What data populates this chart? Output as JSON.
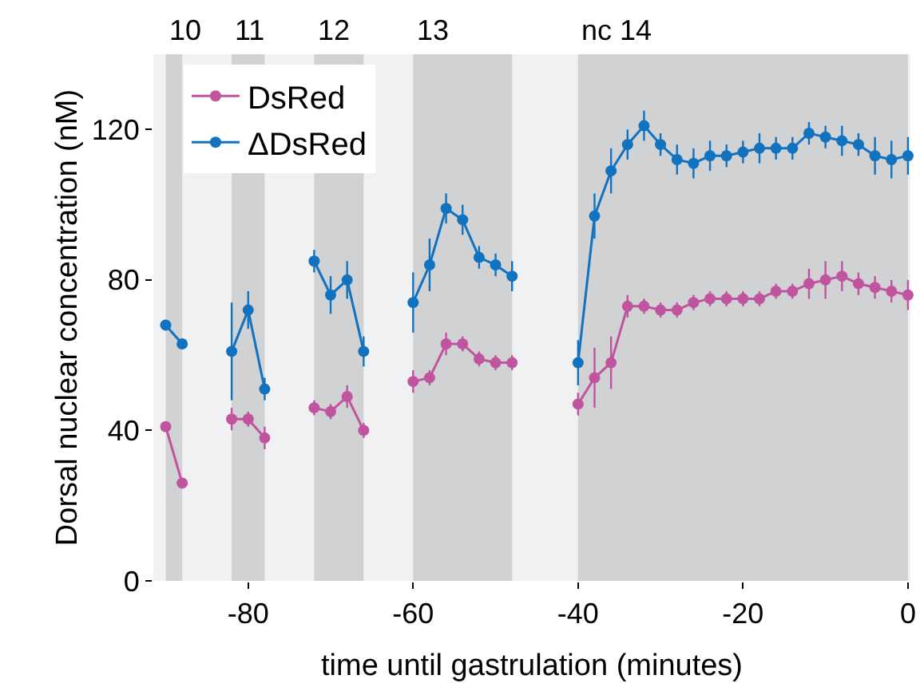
{
  "chart_data": {
    "type": "line",
    "xlabel": "time until gastrulation (minutes)",
    "ylabel": "Dorsal nuclear concentration (nM)",
    "xlim": [
      -91.5,
      0.3
    ],
    "xticks": [
      -80,
      -60,
      -40,
      -20,
      0
    ],
    "ylim": [
      0,
      140
    ],
    "yticks": [
      0,
      40,
      80,
      120
    ],
    "grid": false,
    "legend": "top left",
    "marker": "circle",
    "line_style": "solid",
    "bands": [
      {
        "axis": "x",
        "from": -90,
        "to": -88,
        "label": "10",
        "color": "#d1d2d4"
      },
      {
        "axis": "x",
        "from": -82,
        "to": -78,
        "label": "11",
        "color": "#d1d2d4"
      },
      {
        "axis": "x",
        "from": -72,
        "to": -66,
        "label": "12",
        "color": "#d1d2d4"
      },
      {
        "axis": "x",
        "from": -60,
        "to": -48,
        "label": "13",
        "color": "#d1d2d4"
      },
      {
        "axis": "x",
        "from": -40,
        "to": 0,
        "label": "nc 14",
        "color": "#d1d2d4"
      }
    ],
    "series": [
      {
        "name": "DsRed",
        "color": "#c0549f",
        "x": [
          -90,
          -88,
          -85,
          -82,
          -80,
          -78,
          -75,
          -72,
          -70,
          -68,
          -66,
          -63,
          -60,
          -58,
          -56,
          -54,
          -52,
          -50,
          -48,
          -44,
          -40,
          -38,
          -36,
          -34,
          -32,
          -30,
          -28,
          -26,
          -24,
          -22,
          -20,
          -18,
          -16,
          -14,
          -12,
          -10,
          -8,
          -6,
          -4,
          -2,
          0
        ],
        "values": [
          41,
          26,
          null,
          43,
          43,
          38,
          null,
          46,
          45,
          49,
          40,
          null,
          53,
          54,
          63,
          63,
          59,
          58,
          58,
          null,
          47,
          54,
          58,
          73,
          73,
          72,
          72,
          74,
          75,
          75,
          75,
          75,
          77,
          77,
          79,
          80,
          81,
          79,
          78,
          77,
          76
        ],
        "errors": [
          1,
          1,
          null,
          3,
          2,
          3,
          null,
          2,
          2,
          3,
          2,
          null,
          3,
          2,
          3,
          2,
          2,
          2,
          2,
          null,
          3,
          8,
          7,
          3,
          2,
          2,
          2,
          2,
          2,
          2,
          2,
          2,
          2,
          2,
          4,
          5,
          4,
          3,
          3,
          3,
          4
        ]
      },
      {
        "name": "ΔDsRed",
        "color": "#1172c0",
        "x": [
          -90,
          -88,
          -85,
          -82,
          -80,
          -78,
          -75,
          -72,
          -70,
          -68,
          -66,
          -63,
          -60,
          -58,
          -56,
          -54,
          -52,
          -50,
          -48,
          -44,
          -40,
          -38,
          -36,
          -34,
          -32,
          -30,
          -28,
          -26,
          -24,
          -22,
          -20,
          -18,
          -16,
          -14,
          -12,
          -10,
          -8,
          -6,
          -4,
          -2,
          0
        ],
        "values": [
          68,
          63,
          null,
          61,
          72,
          51,
          null,
          85,
          76,
          80,
          61,
          null,
          74,
          84,
          99,
          96,
          86,
          84,
          81,
          null,
          58,
          97,
          109,
          116,
          121,
          116,
          112,
          111,
          113,
          113,
          114,
          115,
          115,
          115,
          119,
          118,
          117,
          116,
          113,
          112,
          113
        ],
        "errors": [
          1,
          1,
          null,
          13,
          5,
          3,
          null,
          3,
          5,
          5,
          4,
          null,
          8,
          7,
          4,
          4,
          3,
          3,
          4,
          null,
          6,
          6,
          6,
          4,
          4,
          3,
          4,
          4,
          4,
          3,
          3,
          4,
          3,
          3,
          3,
          3,
          4,
          3,
          5,
          5,
          5
        ]
      }
    ]
  }
}
